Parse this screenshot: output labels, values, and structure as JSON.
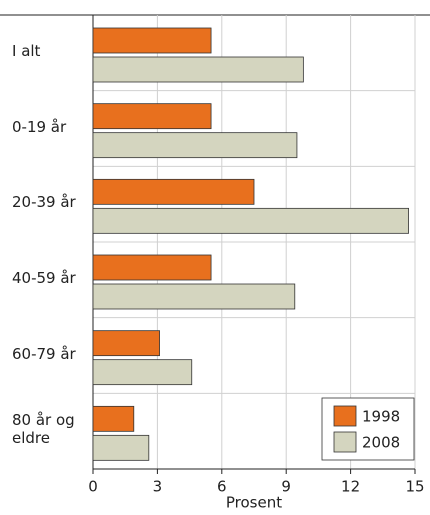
{
  "chart_data": {
    "type": "bar",
    "orientation": "horizontal",
    "categories": [
      "I alt",
      "0-19 år",
      "20-39 år",
      "40-59 år",
      "60-79 år",
      "80 år og eldre"
    ],
    "series": [
      {
        "name": "1998",
        "color": "#e8701e",
        "values": [
          5.5,
          5.5,
          7.5,
          5.5,
          3.1,
          1.9
        ]
      },
      {
        "name": "2008",
        "color": "#d4d5bf",
        "values": [
          9.8,
          9.5,
          14.7,
          9.4,
          4.6,
          2.6
        ]
      }
    ],
    "xlim": [
      0,
      15
    ],
    "xticks": [
      0,
      3,
      6,
      9,
      12,
      15
    ],
    "xlabel": "Prosent",
    "grid": true,
    "legend": "lower right"
  }
}
